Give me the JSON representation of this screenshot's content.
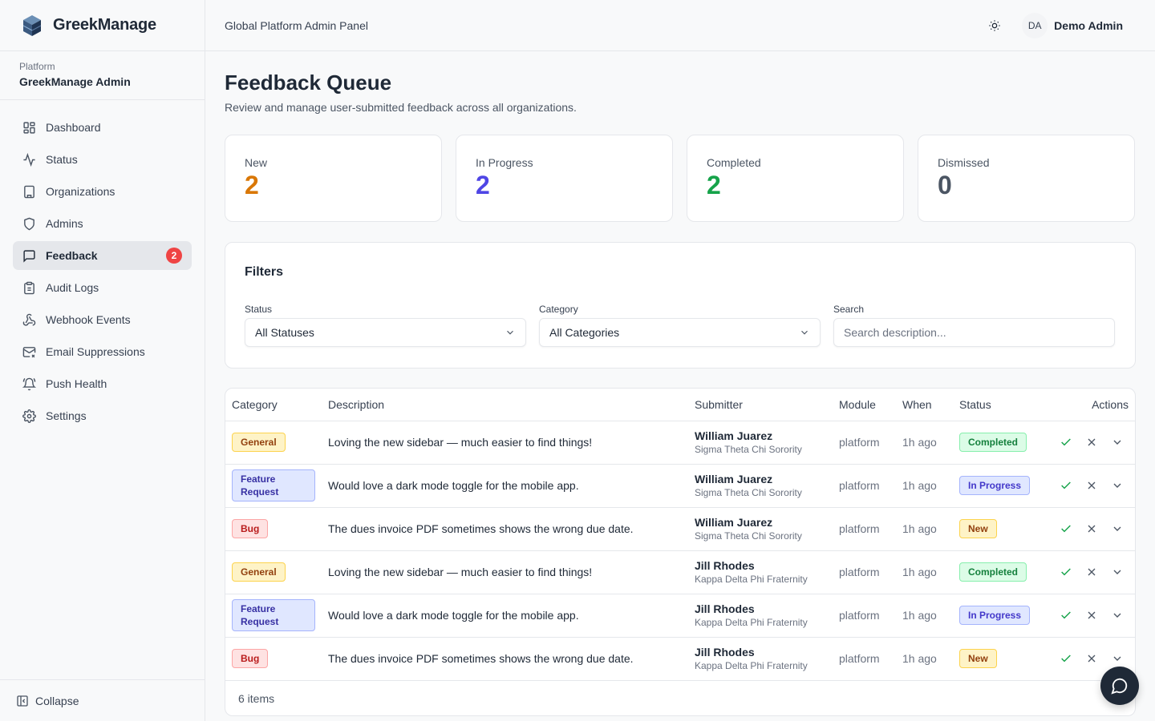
{
  "brand": {
    "name": "GreekManage"
  },
  "platform": {
    "label": "Platform",
    "name": "GreekManage Admin"
  },
  "nav": {
    "items": [
      {
        "label": "Dashboard",
        "icon": "dashboard-icon"
      },
      {
        "label": "Status",
        "icon": "activity-icon"
      },
      {
        "label": "Organizations",
        "icon": "building-icon"
      },
      {
        "label": "Admins",
        "icon": "shield-icon"
      },
      {
        "label": "Feedback",
        "icon": "message-icon",
        "badge": "2",
        "active": true
      },
      {
        "label": "Audit Logs",
        "icon": "clipboard-icon"
      },
      {
        "label": "Webhook Events",
        "icon": "webhook-icon"
      },
      {
        "label": "Email Suppressions",
        "icon": "mail-x-icon"
      },
      {
        "label": "Push Health",
        "icon": "bell-icon"
      },
      {
        "label": "Settings",
        "icon": "gear-icon"
      }
    ],
    "collapse_label": "Collapse"
  },
  "header": {
    "title": "Global Platform Admin Panel",
    "user_initials": "DA",
    "user_name": "Demo Admin"
  },
  "page": {
    "title": "Feedback Queue",
    "subtitle": "Review and manage user-submitted feedback across all organizations."
  },
  "stats": [
    {
      "label": "New",
      "value": "2",
      "color": "#d97706"
    },
    {
      "label": "In Progress",
      "value": "2",
      "color": "#4f46e5"
    },
    {
      "label": "Completed",
      "value": "2",
      "color": "#16a34a"
    },
    {
      "label": "Dismissed",
      "value": "0",
      "color": "#4b5563"
    }
  ],
  "filters": {
    "title": "Filters",
    "status_label": "Status",
    "status_value": "All Statuses",
    "category_label": "Category",
    "category_value": "All Categories",
    "search_label": "Search",
    "search_placeholder": "Search description..."
  },
  "table": {
    "headers": [
      "Category",
      "Description",
      "Submitter",
      "Module",
      "When",
      "Status",
      "Actions"
    ],
    "rows": [
      {
        "category": "General",
        "description": "Loving the new sidebar — much easier to find things!",
        "submitter": "William Juarez",
        "org": "Sigma Theta Chi Sorority",
        "module": "platform",
        "when": "1h ago",
        "status": "Completed"
      },
      {
        "category": "Feature Request",
        "description": "Would love a dark mode toggle for the mobile app.",
        "submitter": "William Juarez",
        "org": "Sigma Theta Chi Sorority",
        "module": "platform",
        "when": "1h ago",
        "status": "In Progress"
      },
      {
        "category": "Bug",
        "description": "The dues invoice PDF sometimes shows the wrong due date.",
        "submitter": "William Juarez",
        "org": "Sigma Theta Chi Sorority",
        "module": "platform",
        "when": "1h ago",
        "status": "New"
      },
      {
        "category": "General",
        "description": "Loving the new sidebar — much easier to find things!",
        "submitter": "Jill Rhodes",
        "org": "Kappa Delta Phi Fraternity",
        "module": "platform",
        "when": "1h ago",
        "status": "Completed"
      },
      {
        "category": "Feature Request",
        "description": "Would love a dark mode toggle for the mobile app.",
        "submitter": "Jill Rhodes",
        "org": "Kappa Delta Phi Fraternity",
        "module": "platform",
        "when": "1h ago",
        "status": "In Progress"
      },
      {
        "category": "Bug",
        "description": "The dues invoice PDF sometimes shows the wrong due date.",
        "submitter": "Jill Rhodes",
        "org": "Kappa Delta Phi Fraternity",
        "module": "platform",
        "when": "1h ago",
        "status": "New"
      }
    ],
    "footer": "6 items"
  }
}
